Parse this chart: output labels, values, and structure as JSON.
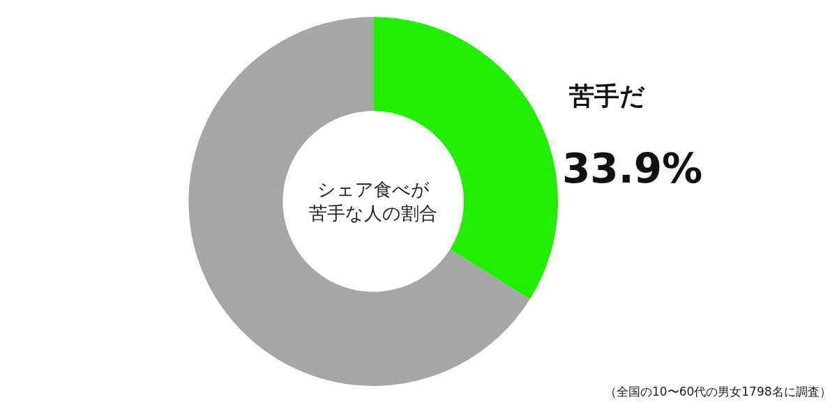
{
  "chart_data": {
    "type": "donut",
    "title": "シェア食べが苦手な人の割合",
    "categories": [
      "苦手だ",
      null
    ],
    "values": [
      33.9,
      66.1
    ],
    "colors": [
      "#22ee00",
      "#a6a6a6"
    ],
    "value_labels": [
      "33.9%",
      null
    ],
    "legend": false,
    "annotations": [
      "（全国の10〜60代の男女1798名に調査）"
    ]
  }
}
